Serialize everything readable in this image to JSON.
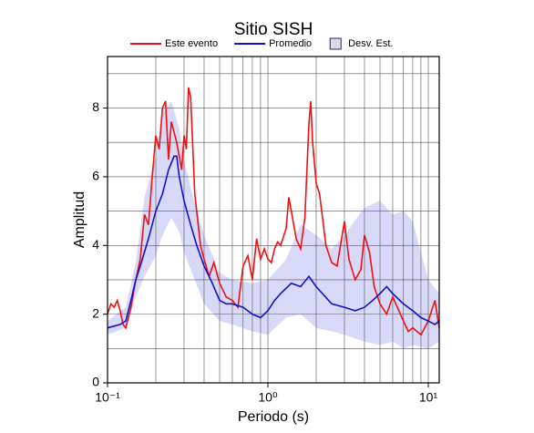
{
  "chart_data": {
    "type": "line",
    "title": "Sitio SISH",
    "x_label": "Periodo (s)",
    "y_label": "Amplitud",
    "xscale": "log",
    "grid": true,
    "xlim": [
      0.1,
      11.7
    ],
    "ylim": [
      0,
      9.5
    ],
    "xticks": [
      {
        "value": 0.1,
        "label": "10⁻¹"
      },
      {
        "value": 1,
        "label": "10⁰"
      },
      {
        "value": 10,
        "label": "10¹"
      }
    ],
    "xminorticks": [
      0.2,
      0.3,
      0.4,
      0.5,
      0.6,
      0.7,
      0.8,
      0.9,
      2,
      3,
      4,
      5,
      6,
      7,
      8,
      9
    ],
    "yticks": [
      0,
      2,
      4,
      6,
      8
    ],
    "yminorticks": [
      1,
      3,
      5,
      7,
      9
    ],
    "band": {
      "name": "Desv. Est.",
      "color": "#d8d8f8",
      "x": [
        0.1,
        0.13,
        0.15,
        0.17,
        0.2,
        0.22,
        0.25,
        0.28,
        0.3,
        0.35,
        0.4,
        0.5,
        0.6,
        0.8,
        1.0,
        1.3,
        1.6,
        2.0,
        2.5,
        3,
        4,
        5,
        6,
        7,
        8,
        10,
        11.7
      ],
      "upper": [
        1.8,
        2.2,
        3.5,
        5.4,
        6.6,
        7.8,
        8.2,
        7.4,
        6.5,
        5.2,
        4.3,
        3.2,
        3.0,
        2.9,
        3.0,
        3.6,
        4.6,
        4.3,
        3.9,
        4.3,
        5.1,
        5.3,
        4.9,
        5.0,
        4.7,
        3.0,
        2.6
      ],
      "lower": [
        1.4,
        1.6,
        2.5,
        3.1,
        3.7,
        4.3,
        4.8,
        4.4,
        3.8,
        3.0,
        2.3,
        1.8,
        1.7,
        1.5,
        1.4,
        1.9,
        2.0,
        1.6,
        1.5,
        1.4,
        1.2,
        1.1,
        1.2,
        1.0,
        1.1,
        1.0,
        1.2
      ]
    },
    "series": [
      {
        "name": "Este evento",
        "color": "#ee1111",
        "x": [
          0.1,
          0.105,
          0.11,
          0.115,
          0.12,
          0.125,
          0.13,
          0.14,
          0.15,
          0.16,
          0.17,
          0.18,
          0.19,
          0.2,
          0.21,
          0.22,
          0.23,
          0.24,
          0.25,
          0.27,
          0.29,
          0.3,
          0.31,
          0.32,
          0.33,
          0.35,
          0.38,
          0.4,
          0.43,
          0.46,
          0.5,
          0.55,
          0.6,
          0.65,
          0.7,
          0.75,
          0.8,
          0.85,
          0.9,
          0.95,
          1.0,
          1.05,
          1.1,
          1.15,
          1.2,
          1.3,
          1.35,
          1.4,
          1.5,
          1.6,
          1.7,
          1.8,
          1.85,
          1.9,
          2.0,
          2.1,
          2.3,
          2.5,
          2.7,
          3.0,
          3.2,
          3.5,
          3.8,
          4.0,
          4.3,
          4.6,
          5.0,
          5.5,
          6,
          7,
          7.5,
          8,
          9,
          10,
          11,
          11.7
        ],
        "values": [
          2.0,
          2.3,
          2.2,
          2.4,
          2.1,
          1.7,
          1.6,
          2.2,
          3.0,
          3.6,
          4.9,
          4.6,
          6.0,
          7.2,
          6.8,
          8.0,
          8.2,
          6.5,
          7.6,
          7.0,
          6.2,
          7.2,
          6.8,
          8.6,
          8.3,
          5.5,
          4.0,
          3.6,
          3.1,
          3.5,
          2.9,
          2.5,
          2.4,
          2.2,
          3.4,
          3.7,
          3.0,
          4.2,
          3.6,
          3.9,
          3.6,
          3.5,
          3.9,
          4.1,
          4.0,
          4.5,
          5.4,
          5.0,
          4.2,
          3.9,
          4.8,
          7.5,
          8.2,
          7.0,
          5.8,
          5.5,
          4.0,
          3.5,
          3.4,
          4.7,
          3.6,
          3.0,
          3.3,
          4.3,
          3.8,
          2.8,
          2.3,
          2.0,
          2.5,
          1.8,
          1.5,
          1.6,
          1.4,
          1.8,
          2.4,
          1.6
        ]
      },
      {
        "name": "Promedio",
        "color": "#1111cc",
        "x": [
          0.1,
          0.12,
          0.13,
          0.14,
          0.15,
          0.16,
          0.18,
          0.2,
          0.22,
          0.24,
          0.26,
          0.27,
          0.28,
          0.3,
          0.33,
          0.36,
          0.4,
          0.45,
          0.5,
          0.55,
          0.6,
          0.7,
          0.8,
          0.9,
          1.0,
          1.1,
          1.2,
          1.4,
          1.6,
          1.8,
          2.0,
          2.5,
          3.0,
          3.5,
          4.0,
          4.5,
          5.0,
          5.5,
          6.0,
          7.0,
          8.0,
          9.0,
          10,
          11,
          11.7
        ],
        "values": [
          1.6,
          1.7,
          1.8,
          2.4,
          3.0,
          3.4,
          4.2,
          5.0,
          5.5,
          6.2,
          6.6,
          6.6,
          6.0,
          5.3,
          4.6,
          4.0,
          3.4,
          2.9,
          2.4,
          2.3,
          2.3,
          2.2,
          2.0,
          1.9,
          2.1,
          2.4,
          2.6,
          2.9,
          2.8,
          3.1,
          2.8,
          2.3,
          2.2,
          2.1,
          2.2,
          2.4,
          2.6,
          2.8,
          2.6,
          2.3,
          2.1,
          1.9,
          1.8,
          1.7,
          1.8
        ]
      }
    ]
  }
}
